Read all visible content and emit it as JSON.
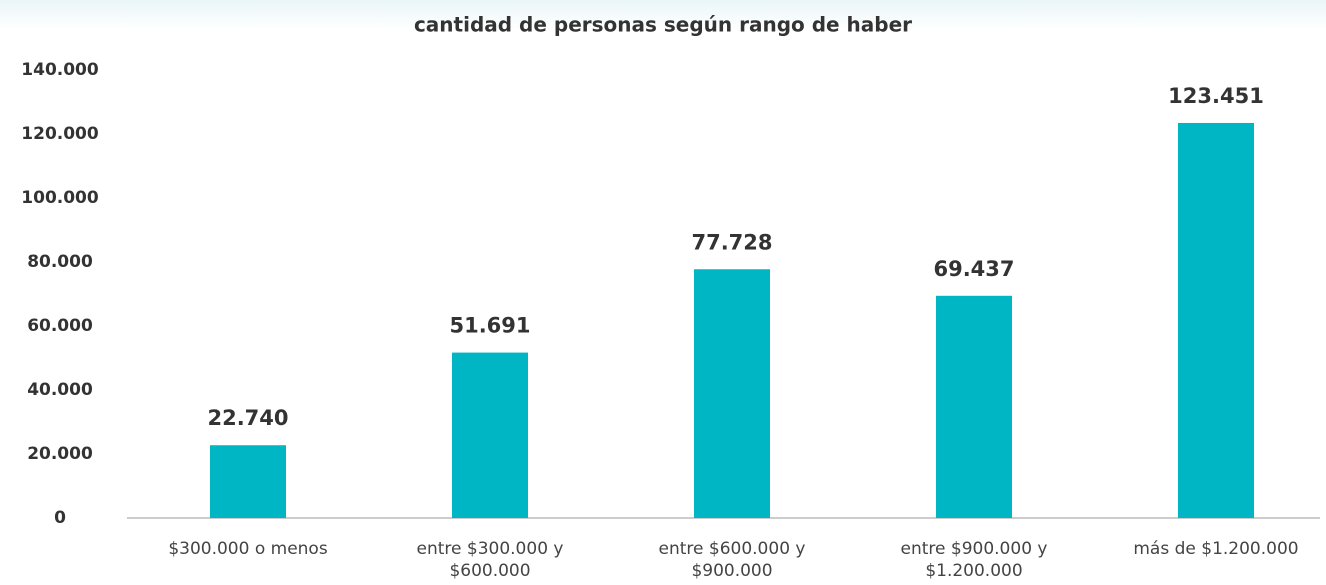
{
  "chart_data": {
    "type": "bar",
    "title": "cantidad de personas según rango de haber",
    "categories": [
      "$300.000 o menos",
      "entre $300.000 y $600.000",
      "entre $600.000 y $900.000",
      "entre $900.000 y $1.200.000",
      "más de $1.200.000"
    ],
    "values": [
      22740,
      51691,
      77728,
      69437,
      123451
    ],
    "value_labels": [
      "22.740",
      "51.691",
      "77.728",
      "69.437",
      "123.451"
    ],
    "color": "#00b5c4",
    "ylim": [
      0,
      140000
    ],
    "yticks": [
      0,
      {
        "value": 20000,
        "label": "20.000"
      },
      {
        "value": 40000,
        "label": "40.000"
      },
      {
        "value": 60000,
        "label": "60.000"
      },
      {
        "value": 80000,
        "label": "80.000"
      },
      {
        "value": 100000,
        "label": "100.000"
      },
      {
        "value": 120000,
        "label": "120.000"
      },
      {
        "value": 140000,
        "label": "140.000"
      }
    ],
    "grid": false
  }
}
